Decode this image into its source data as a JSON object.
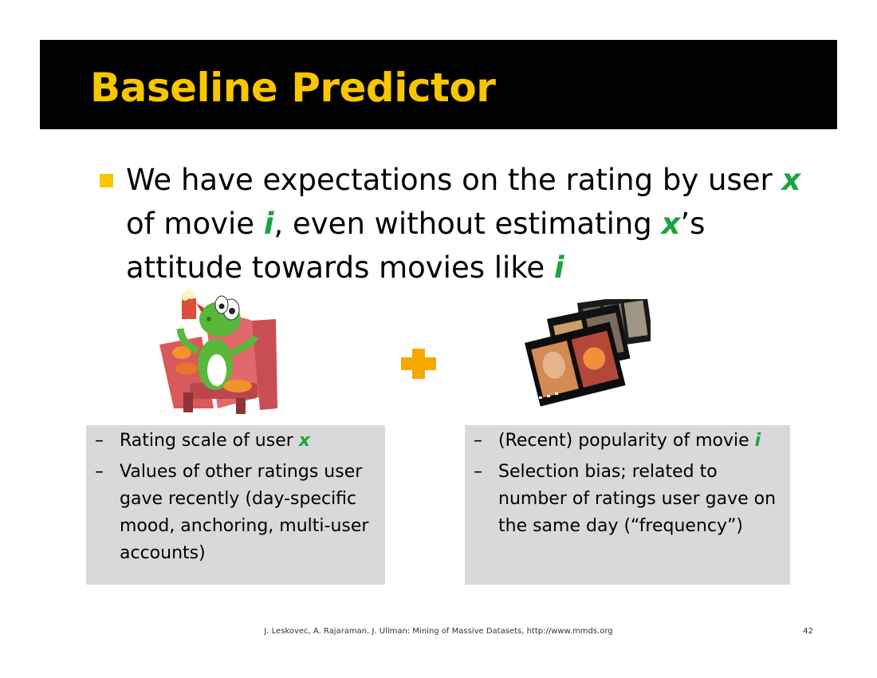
{
  "slide": {
    "title": "Baseline Predictor",
    "bullet": {
      "part1": "We have expectations on the rating by user ",
      "var_x": "x",
      "part2": " of movie ",
      "var_i": "i",
      "part3": ", even without estimating ",
      "var_x2": "x",
      "part4": "’s attitude towards movies like ",
      "var_i2": "i"
    },
    "left_box": {
      "items": [
        {
          "dash": "–",
          "text": "Rating scale of user ",
          "var": "x"
        },
        {
          "dash": "–",
          "text": "Values of other ratings user gave recently (day-specific mood, anchoring, multi-user accounts)"
        }
      ]
    },
    "right_box": {
      "items": [
        {
          "dash": "–",
          "text": "(Recent) popularity of movie ",
          "var": "i"
        },
        {
          "dash": "–",
          "text": "Selection bias; related to number of ratings user gave on the same day (“frequency”)"
        }
      ]
    },
    "footer": "J. Leskovec, A. Rajaraman, J. Ullman: Mining of Massive Datasets, http://www.mmds.org",
    "page_number": "42",
    "colors": {
      "title_bg": "#000000",
      "title_text": "#f7c600",
      "variable": "#1aa53c",
      "box_bg": "#d9d9db",
      "plus": "#f7a800"
    },
    "icons": {
      "user": "yoshi-in-cinema-seat-image",
      "plus": "plus-icon",
      "movie": "film-strip-image"
    }
  }
}
